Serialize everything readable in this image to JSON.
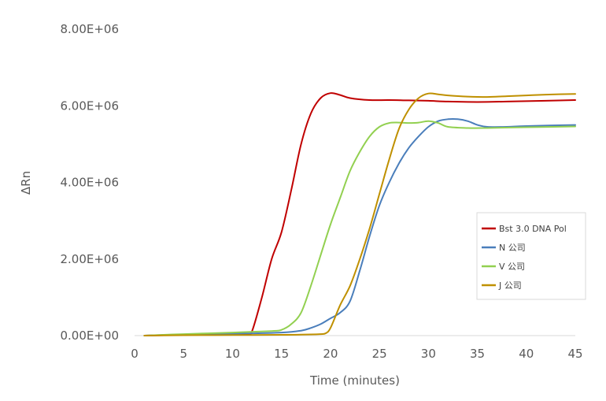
{
  "chart_data": {
    "type": "line",
    "title": "",
    "xlabel": "Time (minutes)",
    "ylabel": "ΔRn",
    "xlim": [
      0,
      45
    ],
    "ylim": [
      0,
      8000000
    ],
    "x_ticks": [
      0,
      5,
      10,
      15,
      20,
      25,
      30,
      35,
      40,
      45
    ],
    "y_ticks": [
      0,
      2000000,
      4000000,
      6000000,
      8000000
    ],
    "y_tick_labels": [
      "0.00E+00",
      "2.00E+06",
      "4.00E+06",
      "6.00E+06",
      "8.00E+06"
    ],
    "grid": false,
    "legend_position": "right",
    "series": [
      {
        "name": "Bst 3.0 DNA Pol",
        "color": "#c00000",
        "x": [
          1,
          5,
          10,
          11.5,
          12,
          13,
          14,
          15,
          16,
          17,
          18,
          19,
          20,
          21,
          22,
          24,
          26,
          28,
          30,
          32,
          34,
          36,
          38,
          40,
          42,
          45
        ],
        "y": [
          0,
          20000,
          40000,
          50000,
          120000,
          1000000,
          2000000,
          2700000,
          3800000,
          5000000,
          5800000,
          6200000,
          6330000,
          6280000,
          6200000,
          6150000,
          6150000,
          6140000,
          6130000,
          6110000,
          6100000,
          6100000,
          6110000,
          6120000,
          6130000,
          6150000
        ]
      },
      {
        "name": "N 公司",
        "color": "#4a7ebb",
        "x": [
          1,
          5,
          10,
          15,
          17,
          18,
          19,
          20,
          21,
          22,
          23,
          24,
          25,
          26,
          27,
          28,
          29,
          30,
          31,
          32,
          33,
          34,
          35,
          36,
          38,
          40,
          45
        ],
        "y": [
          0,
          30000,
          50000,
          80000,
          130000,
          200000,
          300000,
          450000,
          600000,
          900000,
          1700000,
          2600000,
          3400000,
          4000000,
          4500000,
          4900000,
          5200000,
          5450000,
          5600000,
          5650000,
          5650000,
          5600000,
          5500000,
          5450000,
          5450000,
          5470000,
          5500000
        ]
      },
      {
        "name": "V 公司",
        "color": "#92d050",
        "x": [
          1,
          5,
          10,
          14,
          15,
          16,
          17,
          18,
          19,
          20,
          21,
          22,
          23,
          24,
          25,
          26,
          27,
          28,
          29,
          30,
          31,
          32,
          34,
          36,
          40,
          45
        ],
        "y": [
          0,
          40000,
          80000,
          120000,
          150000,
          300000,
          600000,
          1300000,
          2100000,
          2900000,
          3600000,
          4300000,
          4800000,
          5200000,
          5450000,
          5550000,
          5560000,
          5550000,
          5560000,
          5600000,
          5550000,
          5450000,
          5420000,
          5420000,
          5440000,
          5460000
        ]
      },
      {
        "name": "J 公司",
        "color": "#bf9000",
        "x": [
          1,
          5,
          10,
          15,
          18,
          19,
          19.5,
          20,
          21,
          22,
          23,
          24,
          25,
          26,
          27,
          28,
          29,
          30,
          31,
          32,
          34,
          36,
          38,
          40,
          42,
          45
        ],
        "y": [
          0,
          10000,
          15000,
          20000,
          30000,
          40000,
          60000,
          200000,
          800000,
          1300000,
          2000000,
          2800000,
          3700000,
          4600000,
          5400000,
          5900000,
          6200000,
          6320000,
          6300000,
          6270000,
          6240000,
          6230000,
          6250000,
          6270000,
          6290000,
          6310000
        ]
      }
    ]
  }
}
